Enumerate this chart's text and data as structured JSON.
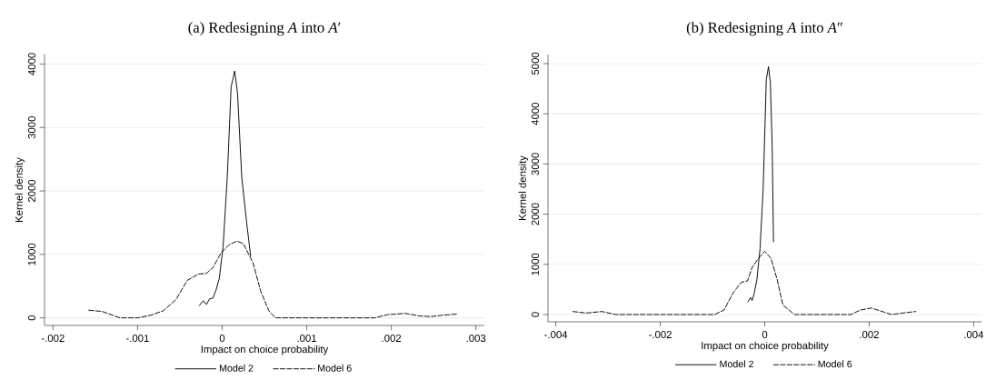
{
  "chart_data": [
    {
      "type": "line",
      "title": "(a) Redesigning *A* into *A*′",
      "xlabel": "Impact on choice probability",
      "ylabel": "Kernel density",
      "xlim": [
        -0.0021,
        0.0031
      ],
      "ylim": [
        -120,
        4150
      ],
      "xticks": [
        {
          "value": -0.002,
          "label": "-.002"
        },
        {
          "value": -0.001,
          "label": "-.001"
        },
        0,
        {
          "value": 0.001,
          "label": ".001"
        },
        {
          "value": 0.002,
          "label": ".002"
        },
        {
          "value": 0.003,
          "label": ".003"
        }
      ],
      "yticks": [
        0,
        1000,
        2000,
        3000,
        4000
      ],
      "grid": "y",
      "legend": "bottom",
      "series": [
        {
          "name": "Model 2",
          "color": "#000000",
          "line_style": "solid",
          "x": [
            -0.000273,
            -0.000223,
            -0.000186,
            -0.000148,
            -0.00011,
            -7.2e-05,
            -3.4e-05,
            1.1e-05,
            6.1e-05,
            0.000106,
            0.000148,
            0.000182,
            0.000231,
            0.000288,
            0.000337
          ],
          "values": [
            190,
            270,
            210,
            300,
            310,
            440,
            620,
            1120,
            2230,
            3640,
            3890,
            3540,
            2230,
            1520,
            970
          ]
        },
        {
          "name": "Model 6",
          "color": "#000000",
          "line_style": "dashed",
          "x": [
            -0.001576,
            -0.001417,
            -0.001208,
            -0.001,
            -0.000848,
            -0.000697,
            -0.000545,
            -0.000413,
            -0.00028,
            -0.000186,
            -0.00011,
            -1.5e-05,
            8e-05,
            0.000174,
            0.00025,
            0.000364,
            0.000458,
            0.000553,
            0.000629,
            0.001803,
            0.001955,
            0.002163,
            0.002333,
            0.002466,
            0.002598,
            0.00278
          ],
          "values": [
            120,
            100,
            0,
            0,
            40,
            110,
            290,
            590,
            690,
            700,
            790,
            1020,
            1150,
            1210,
            1170,
            870,
            410,
            110,
            0,
            0,
            50,
            70,
            30,
            20,
            40,
            60
          ]
        }
      ]
    },
    {
      "type": "line",
      "title": "(b) Redesigning *A* into *A*″",
      "xlabel": "Impact on choice probability",
      "ylabel": "Kernel density",
      "xlim": [
        -0.00415,
        0.00415
      ],
      "ylim": [
        -145,
        5180
      ],
      "xticks": [
        {
          "value": -0.004,
          "label": "-.004"
        },
        {
          "value": -0.002,
          "label": "-.002"
        },
        0,
        {
          "value": 0.002,
          "label": ".002"
        },
        {
          "value": 0.004,
          "label": ".004"
        }
      ],
      "yticks": [
        0,
        1000,
        2000,
        3000,
        4000,
        5000
      ],
      "grid": "y",
      "legend": "bottom",
      "series": [
        {
          "name": "Model 2",
          "color": "#000000",
          "line_style": "solid",
          "x": [
            -0.000324,
            -0.00027,
            -0.00024,
            -0.000204,
            -0.00015,
            -9e-05,
            -3e-05,
            3e-05,
            7.2e-05,
            0.000108,
            0.000144,
            0.000168
          ],
          "values": [
            250,
            340,
            280,
            410,
            690,
            1310,
            2500,
            4680,
            4940,
            4620,
            3310,
            1440
          ]
        },
        {
          "name": "Model 6",
          "color": "#000000",
          "line_style": "dashed",
          "x": [
            -0.003673,
            -0.003421,
            -0.003121,
            -0.002851,
            -0.00096,
            -0.00078,
            -0.0006,
            -0.00045,
            -0.00033,
            -0.00024,
            -0.00012,
            0,
            0.00012,
            0.00024,
            0.000348,
            0.00057,
            0.001651,
            0.001831,
            0.002041,
            0.002281,
            0.002431,
            0.002641,
            0.002893
          ],
          "values": [
            60,
            30,
            60,
            0,
            0,
            90,
            440,
            640,
            670,
            940,
            1120,
            1260,
            1120,
            690,
            190,
            0,
            0,
            90,
            130,
            50,
            0,
            30,
            60
          ]
        }
      ]
    }
  ]
}
